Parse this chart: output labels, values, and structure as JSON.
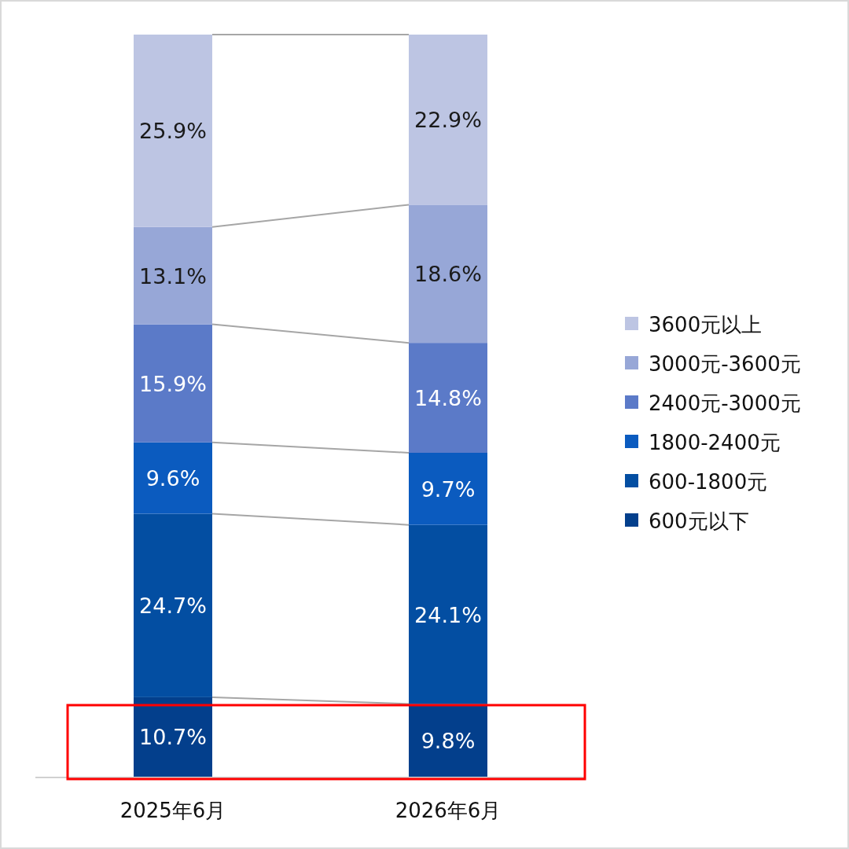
{
  "chart_data": {
    "type": "bar",
    "stacked": true,
    "categories": [
      "2025年6月",
      "2026年6月"
    ],
    "series": [
      {
        "name": "600元以下",
        "color": "#033f8c",
        "values": [
          10.7,
          9.8
        ],
        "value_labels": [
          "10.7%",
          "9.8%"
        ]
      },
      {
        "name": "600-1800元",
        "color": "#034ea2",
        "values": [
          24.7,
          24.1
        ],
        "value_labels": [
          "24.7%",
          "24.1%"
        ]
      },
      {
        "name": "1800-2400元",
        "color": "#0b5bbf",
        "values": [
          9.6,
          9.7
        ],
        "value_labels": [
          "9.6%",
          "9.7%"
        ]
      },
      {
        "name": "2400元-3000元",
        "color": "#5b7ac8",
        "values": [
          15.9,
          14.8
        ],
        "value_labels": [
          "15.9%",
          "14.8%"
        ]
      },
      {
        "name": "3000元-3600元",
        "color": "#97a7d7",
        "values": [
          13.1,
          18.6
        ],
        "value_labels": [
          "13.1%",
          "18.6%"
        ]
      },
      {
        "name": "3600元以上",
        "color": "#bdc5e3",
        "values": [
          25.9,
          22.9
        ],
        "value_labels": [
          "25.9%",
          "22.9%"
        ]
      }
    ],
    "legend": "right"
  }
}
